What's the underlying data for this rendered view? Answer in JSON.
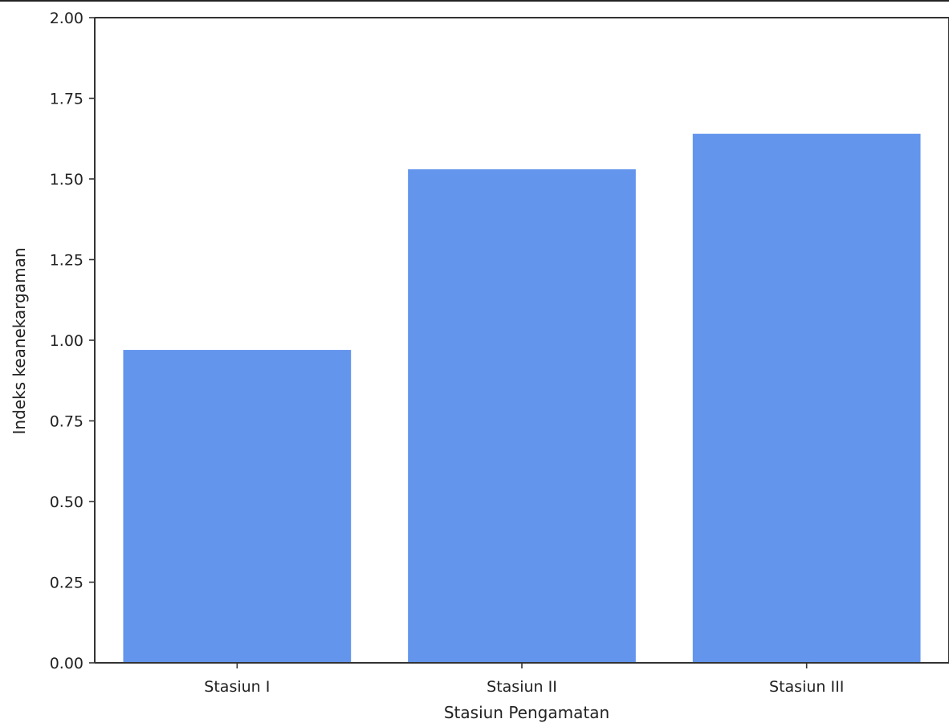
{
  "chart_data": {
    "type": "bar",
    "title": "",
    "xlabel": "Stasiun Pengamatan",
    "ylabel": "Indeks keanekargaman",
    "categories": [
      "Stasiun I",
      "Stasiun II",
      "Stasiun III"
    ],
    "values": [
      0.97,
      1.53,
      1.64
    ],
    "ylim": [
      0,
      2.0
    ],
    "yticks": [
      {
        "value": 0.0,
        "label": "0.00"
      },
      {
        "value": 0.25,
        "label": "0.25"
      },
      {
        "value": 0.5,
        "label": "0.50"
      },
      {
        "value": 0.75,
        "label": "0.75"
      },
      {
        "value": 1.0,
        "label": "1.00"
      },
      {
        "value": 1.25,
        "label": "1.25"
      },
      {
        "value": 1.5,
        "label": "1.50"
      },
      {
        "value": 1.75,
        "label": "1.75"
      },
      {
        "value": 2.0,
        "label": "2.00"
      }
    ],
    "bar_color": "#6495ED",
    "grid": false,
    "legend": "none"
  }
}
